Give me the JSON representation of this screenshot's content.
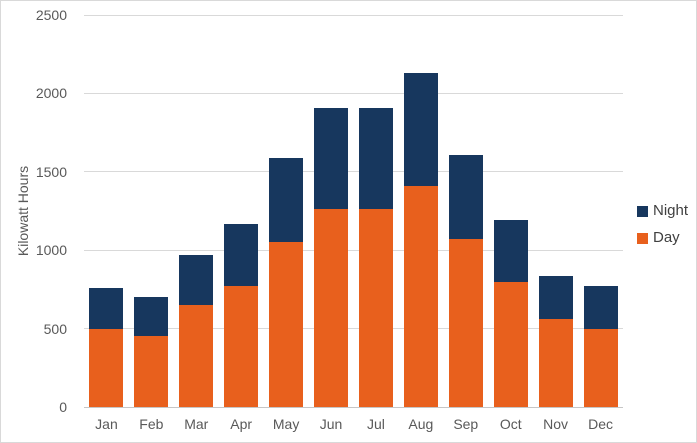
{
  "chart_data": {
    "type": "bar",
    "stacked": true,
    "title": "",
    "xlabel": "",
    "ylabel": "Kilowatt Hours",
    "categories": [
      "Jan",
      "Feb",
      "Mar",
      "Apr",
      "May",
      "Jun",
      "Jul",
      "Aug",
      "Sep",
      "Oct",
      "Nov",
      "Dec"
    ],
    "series": [
      {
        "name": "Day",
        "color": "#e8601d",
        "values": [
          500,
          455,
          650,
          770,
          1050,
          1260,
          1260,
          1410,
          1070,
          800,
          560,
          500
        ]
      },
      {
        "name": "Night",
        "color": "#17375e",
        "values": [
          260,
          245,
          320,
          400,
          540,
          650,
          650,
          720,
          540,
          390,
          275,
          270
        ]
      }
    ],
    "stack_order_bottom_to_top": [
      "Day",
      "Night"
    ],
    "totals": [
      760,
      700,
      970,
      1170,
      1590,
      1910,
      1910,
      2130,
      1610,
      1190,
      835,
      770
    ],
    "ylim": [
      0,
      2500
    ],
    "yticks": [
      0,
      500,
      1000,
      1500,
      2000,
      2500
    ],
    "gridlines": "horizontal",
    "legend_position": "right",
    "legend_order": [
      "Night",
      "Day"
    ],
    "colors": {
      "day": "#e8601d",
      "night": "#17375e",
      "grid": "#d9d9d9",
      "axis_text": "#595959",
      "legend_text": "#404040",
      "chart_border": "#d9d9d9",
      "background": "#ffffff"
    }
  }
}
